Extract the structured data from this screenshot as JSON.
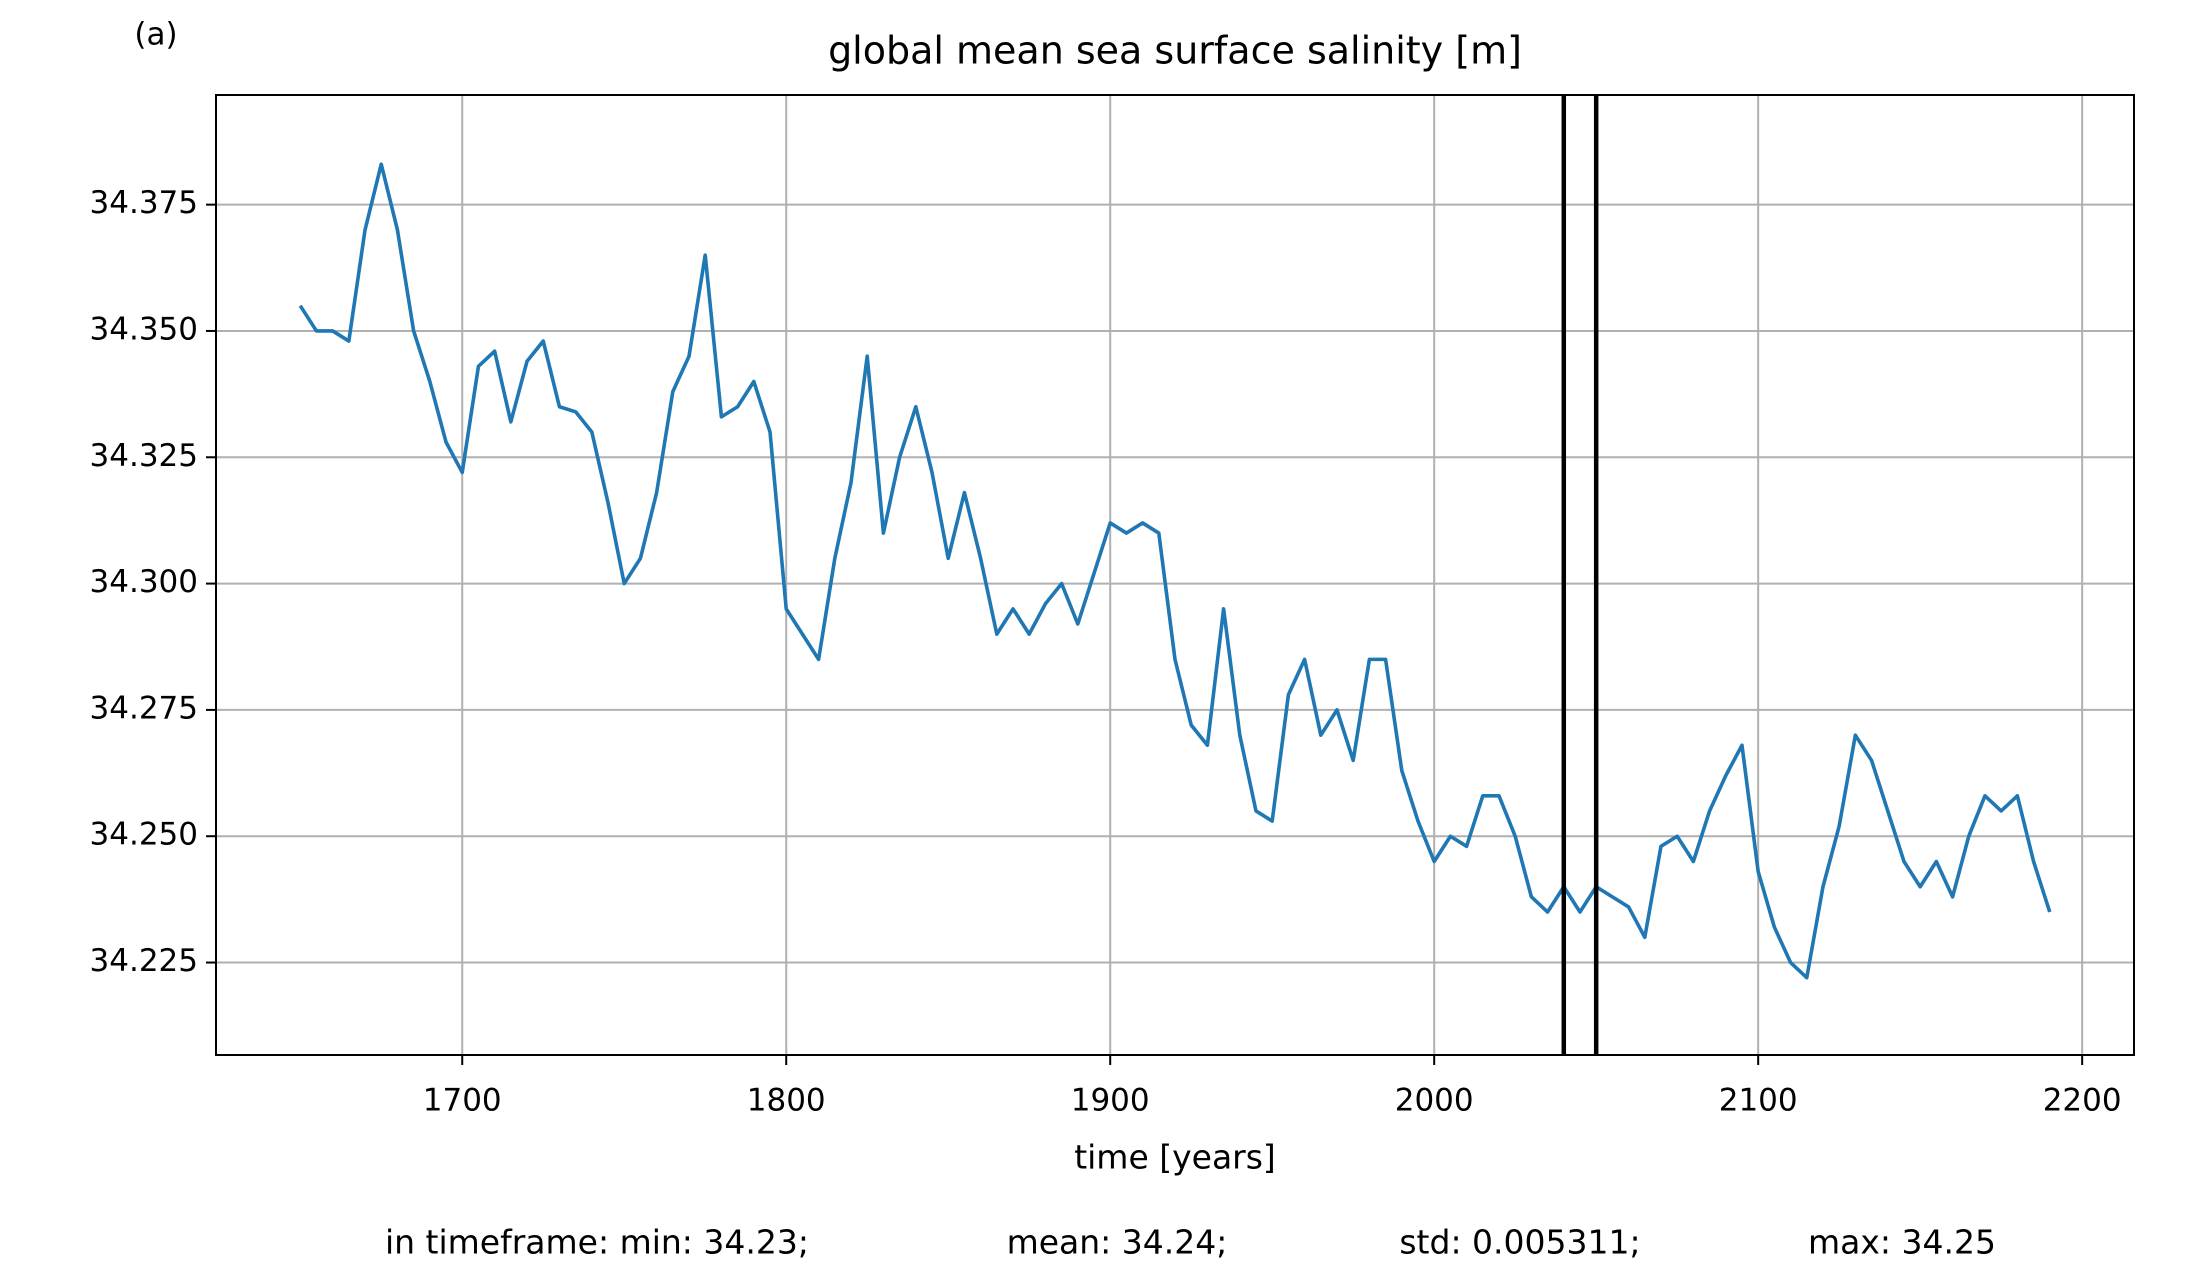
{
  "chart_data": {
    "type": "line",
    "panel_label": "(a)",
    "title": "global mean sea surface salinity [m]",
    "xlabel": "time [years]",
    "stats": [
      "in timeframe: min: 34.23;",
      "mean: 34.24;",
      "std: 0.005311;",
      "max: 34.25"
    ],
    "xlim": [
      1624,
      2216
    ],
    "xticks": [
      1700,
      1800,
      1900,
      2000,
      2100,
      2200
    ],
    "ylim": [
      34.2067,
      34.3967
    ],
    "yticks": [
      {
        "value": 34.225,
        "label": "34.225"
      },
      {
        "value": 34.25,
        "label": "34.250"
      },
      {
        "value": 34.275,
        "label": "34.275"
      },
      {
        "value": 34.3,
        "label": "34.300"
      },
      {
        "value": 34.325,
        "label": "34.325"
      },
      {
        "value": 34.35,
        "label": "34.350"
      },
      {
        "value": 34.375,
        "label": "34.375"
      }
    ],
    "grid": true,
    "vlines": [
      2040,
      2050
    ],
    "vline_color": "#000000",
    "x": [
      1650,
      1655,
      1660,
      1665,
      1670,
      1675,
      1680,
      1685,
      1690,
      1695,
      1700,
      1705,
      1710,
      1715,
      1720,
      1725,
      1730,
      1735,
      1740,
      1745,
      1750,
      1755,
      1760,
      1765,
      1770,
      1775,
      1780,
      1785,
      1790,
      1795,
      1800,
      1805,
      1810,
      1815,
      1820,
      1825,
      1830,
      1835,
      1840,
      1845,
      1850,
      1855,
      1860,
      1865,
      1870,
      1875,
      1880,
      1885,
      1890,
      1895,
      1900,
      1905,
      1910,
      1915,
      1920,
      1925,
      1930,
      1935,
      1940,
      1945,
      1950,
      1955,
      1960,
      1965,
      1970,
      1975,
      1980,
      1985,
      1990,
      1995,
      2000,
      2005,
      2010,
      2015,
      2020,
      2025,
      2030,
      2035,
      2040,
      2045,
      2050,
      2055,
      2060,
      2065,
      2070,
      2075,
      2080,
      2085,
      2090,
      2095,
      2100,
      2105,
      2110,
      2115,
      2120,
      2125,
      2130,
      2135,
      2140,
      2145,
      2150,
      2155,
      2160,
      2165,
      2170,
      2175,
      2180,
      2185,
      2190
    ],
    "series": [
      {
        "name": "global mean sea surface salinity",
        "color": "#1f77b4",
        "values": [
          34.355,
          34.35,
          34.35,
          34.348,
          34.37,
          34.383,
          34.37,
          34.35,
          34.34,
          34.328,
          34.322,
          34.343,
          34.346,
          34.332,
          34.344,
          34.348,
          34.335,
          34.334,
          34.33,
          34.316,
          34.3,
          34.305,
          34.318,
          34.338,
          34.345,
          34.365,
          34.333,
          34.335,
          34.34,
          34.33,
          34.295,
          34.29,
          34.285,
          34.305,
          34.32,
          34.345,
          34.31,
          34.325,
          34.335,
          34.322,
          34.305,
          34.318,
          34.305,
          34.29,
          34.295,
          34.29,
          34.296,
          34.3,
          34.292,
          34.302,
          34.312,
          34.31,
          34.312,
          34.31,
          34.285,
          34.272,
          34.268,
          34.295,
          34.27,
          34.255,
          34.253,
          34.278,
          34.285,
          34.27,
          34.275,
          34.265,
          34.285,
          34.285,
          34.263,
          34.253,
          34.245,
          34.25,
          34.248,
          34.258,
          34.258,
          34.25,
          34.238,
          34.235,
          34.24,
          34.235,
          34.24,
          34.238,
          34.236,
          34.23,
          34.248,
          34.25,
          34.245,
          34.255,
          34.262,
          34.268,
          34.243,
          34.232,
          34.225,
          34.222,
          34.24,
          34.252,
          34.27,
          34.265,
          34.255,
          34.245,
          34.24,
          34.245,
          34.238,
          34.25,
          34.258,
          34.255,
          34.258,
          34.245,
          34.235
        ]
      }
    ]
  }
}
